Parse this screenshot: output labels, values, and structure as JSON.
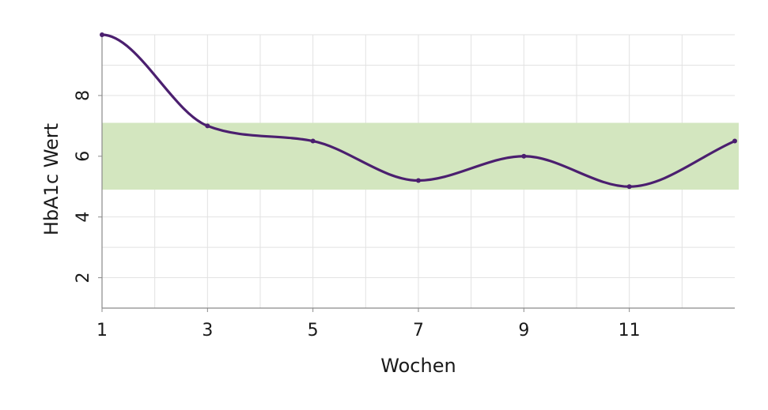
{
  "chart_data": {
    "type": "line",
    "title": "",
    "xlabel": "Wochen",
    "ylabel": "HbA1c Wert",
    "x": [
      1,
      3,
      5,
      7,
      9,
      11,
      13
    ],
    "series": [
      {
        "values": [
          10,
          7,
          6.5,
          5.2,
          6,
          5,
          6.5
        ]
      }
    ],
    "xlim": [
      1,
      13
    ],
    "ylim": [
      1,
      10
    ],
    "x_ticks": [
      1,
      3,
      5,
      7,
      9,
      11
    ],
    "y_ticks": [
      2,
      4,
      6,
      8
    ],
    "target_band": [
      4.9,
      7.1
    ],
    "grid": true,
    "colors": {
      "line": "#4b1f6f",
      "band": "#d3e6bf",
      "grid": "#e2e2e2",
      "axis": "#8a8a8a"
    }
  }
}
